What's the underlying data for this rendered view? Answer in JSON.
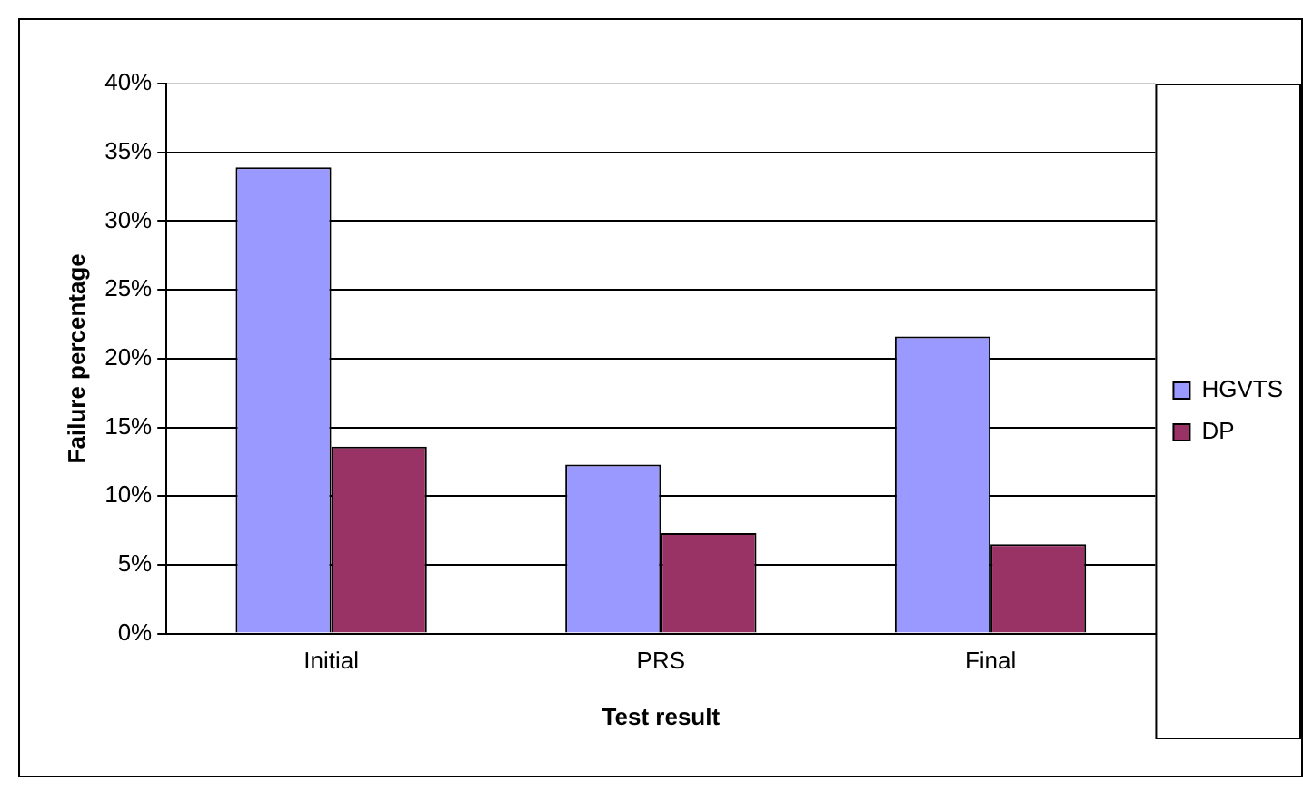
{
  "chart_data": {
    "type": "bar",
    "xlabel": "Test result",
    "ylabel": "Failure percentage",
    "categories": [
      "Initial",
      "PRS",
      "Final"
    ],
    "series": [
      {
        "name": "HGVTS",
        "color": "#9999ff",
        "values": [
          33.9,
          12.3,
          21.6
        ]
      },
      {
        "name": "DP",
        "color": "#993366",
        "values": [
          13.6,
          7.3,
          6.5
        ]
      }
    ],
    "ylim": [
      0,
      40
    ],
    "yticks": [
      {
        "value": 0,
        "label": "0%"
      },
      {
        "value": 5,
        "label": "5%"
      },
      {
        "value": 10,
        "label": "10%"
      },
      {
        "value": 15,
        "label": "15%"
      },
      {
        "value": 20,
        "label": "20%"
      },
      {
        "value": 25,
        "label": "25%"
      },
      {
        "value": 30,
        "label": "30%"
      },
      {
        "value": 35,
        "label": "35%"
      },
      {
        "value": 40,
        "label": "40%"
      }
    ],
    "grid": "y",
    "legend": "right"
  }
}
